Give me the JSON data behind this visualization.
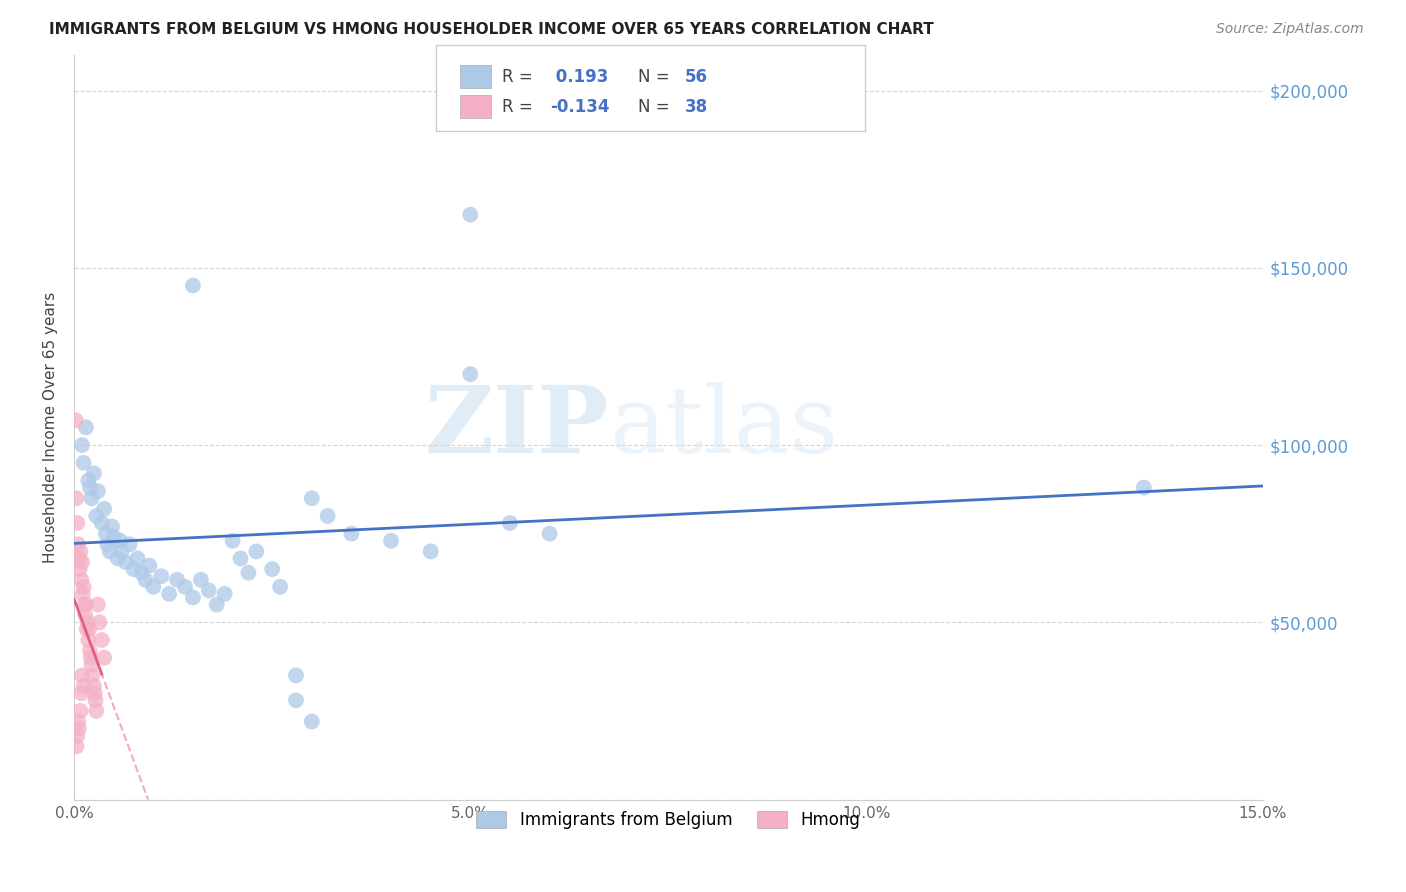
{
  "title": "IMMIGRANTS FROM BELGIUM VS HMONG HOUSEHOLDER INCOME OVER 65 YEARS CORRELATION CHART",
  "source": "Source: ZipAtlas.com",
  "ylabel": "Householder Income Over 65 years",
  "xlim": [
    0,
    15.0
  ],
  "ylim": [
    0,
    210000
  ],
  "belgium_R": 0.193,
  "belgium_N": 56,
  "hmong_R": -0.134,
  "hmong_N": 38,
  "belgium_color": "#adc9e8",
  "hmong_color": "#f5b0c5",
  "belgium_line_color": "#4472c4",
  "hmong_line_color": "#f4a0b8",
  "belgium_scatter": [
    [
      0.1,
      100000
    ],
    [
      0.12,
      95000
    ],
    [
      0.15,
      105000
    ],
    [
      0.18,
      90000
    ],
    [
      0.2,
      88000
    ],
    [
      0.22,
      85000
    ],
    [
      0.25,
      92000
    ],
    [
      0.28,
      80000
    ],
    [
      0.3,
      87000
    ],
    [
      0.35,
      78000
    ],
    [
      0.38,
      82000
    ],
    [
      0.4,
      75000
    ],
    [
      0.42,
      72000
    ],
    [
      0.45,
      70000
    ],
    [
      0.48,
      77000
    ],
    [
      0.5,
      74000
    ],
    [
      0.55,
      68000
    ],
    [
      0.58,
      73000
    ],
    [
      0.6,
      70000
    ],
    [
      0.65,
      67000
    ],
    [
      0.7,
      72000
    ],
    [
      0.75,
      65000
    ],
    [
      0.8,
      68000
    ],
    [
      0.85,
      64000
    ],
    [
      0.9,
      62000
    ],
    [
      0.95,
      66000
    ],
    [
      1.0,
      60000
    ],
    [
      1.1,
      63000
    ],
    [
      1.2,
      58000
    ],
    [
      1.3,
      62000
    ],
    [
      1.4,
      60000
    ],
    [
      1.5,
      57000
    ],
    [
      1.6,
      62000
    ],
    [
      1.7,
      59000
    ],
    [
      1.8,
      55000
    ],
    [
      1.9,
      58000
    ],
    [
      2.0,
      73000
    ],
    [
      2.1,
      68000
    ],
    [
      2.2,
      64000
    ],
    [
      2.3,
      70000
    ],
    [
      2.5,
      65000
    ],
    [
      2.6,
      60000
    ],
    [
      2.8,
      35000
    ],
    [
      1.5,
      145000
    ],
    [
      3.0,
      85000
    ],
    [
      3.2,
      80000
    ],
    [
      3.5,
      75000
    ],
    [
      4.0,
      73000
    ],
    [
      4.5,
      70000
    ],
    [
      5.0,
      120000
    ],
    [
      5.5,
      78000
    ],
    [
      6.0,
      75000
    ],
    [
      3.0,
      22000
    ],
    [
      2.8,
      28000
    ],
    [
      13.5,
      88000
    ],
    [
      5.0,
      165000
    ]
  ],
  "hmong_scatter": [
    [
      0.02,
      107000
    ],
    [
      0.03,
      85000
    ],
    [
      0.04,
      78000
    ],
    [
      0.05,
      72000
    ],
    [
      0.06,
      68000
    ],
    [
      0.07,
      65000
    ],
    [
      0.08,
      70000
    ],
    [
      0.09,
      62000
    ],
    [
      0.1,
      67000
    ],
    [
      0.11,
      58000
    ],
    [
      0.12,
      60000
    ],
    [
      0.13,
      55000
    ],
    [
      0.14,
      52000
    ],
    [
      0.15,
      55000
    ],
    [
      0.16,
      48000
    ],
    [
      0.17,
      50000
    ],
    [
      0.18,
      45000
    ],
    [
      0.19,
      48000
    ],
    [
      0.2,
      42000
    ],
    [
      0.21,
      40000
    ],
    [
      0.22,
      38000
    ],
    [
      0.23,
      35000
    ],
    [
      0.25,
      32000
    ],
    [
      0.26,
      30000
    ],
    [
      0.27,
      28000
    ],
    [
      0.28,
      25000
    ],
    [
      0.3,
      55000
    ],
    [
      0.32,
      50000
    ],
    [
      0.35,
      45000
    ],
    [
      0.38,
      40000
    ],
    [
      0.05,
      22000
    ],
    [
      0.04,
      18000
    ],
    [
      0.03,
      15000
    ],
    [
      0.06,
      20000
    ],
    [
      0.08,
      25000
    ],
    [
      0.09,
      30000
    ],
    [
      0.1,
      35000
    ],
    [
      0.12,
      32000
    ]
  ],
  "watermark_zip": "ZIP",
  "watermark_atlas": "atlas",
  "grid_color": "#d5d5d5",
  "spine_color": "#cccccc"
}
